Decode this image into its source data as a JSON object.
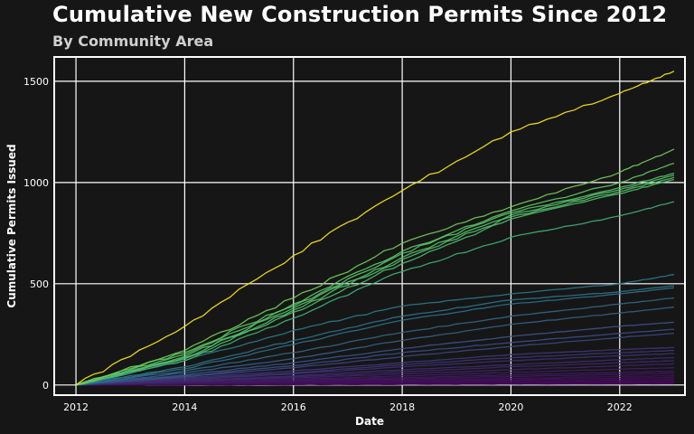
{
  "chart_data": {
    "type": "line",
    "title": "Cumulative New Construction Permits Since 2012",
    "subtitle": "By Community Area",
    "xlabel": "Date",
    "ylabel": "Cumulative Permits Issued",
    "xlim": [
      2011.6,
      2023.2
    ],
    "ylim": [
      -50,
      1620
    ],
    "x_ticks": [
      "2012",
      "2014",
      "2016",
      "2018",
      "2020",
      "2022"
    ],
    "y_ticks": [
      "0",
      "500",
      "1000",
      "1500"
    ],
    "grid": true,
    "colormap": "viridis",
    "colors": {
      "background": "#161616",
      "grid": "#ffffff",
      "low": "#440154",
      "high": "#fde725"
    },
    "x": [
      2012,
      2014,
      2016,
      2018,
      2020,
      2022,
      2023
    ],
    "series": [
      {
        "values": [
          0,
          290,
          640,
          960,
          1250,
          1440,
          1550
        ]
      },
      {
        "values": [
          0,
          170,
          430,
          700,
          880,
          1050,
          1165
        ]
      },
      {
        "values": [
          0,
          160,
          400,
          660,
          860,
          1000,
          1095
        ]
      },
      {
        "values": [
          0,
          150,
          390,
          650,
          850,
          975,
          1045
        ]
      },
      {
        "values": [
          0,
          140,
          380,
          630,
          840,
          965,
          1035
        ]
      },
      {
        "values": [
          0,
          135,
          370,
          620,
          830,
          955,
          1025
        ]
      },
      {
        "values": [
          0,
          130,
          360,
          600,
          820,
          945,
          1015
        ]
      },
      {
        "values": [
          0,
          120,
          330,
          560,
          730,
          835,
          905
        ]
      },
      {
        "values": [
          0,
          120,
          270,
          390,
          450,
          500,
          545
        ]
      },
      {
        "values": [
          0,
          90,
          220,
          340,
          420,
          460,
          490
        ]
      },
      {
        "values": [
          0,
          80,
          200,
          320,
          400,
          450,
          480
        ]
      },
      {
        "values": [
          0,
          70,
          160,
          260,
          340,
          400,
          430
        ]
      },
      {
        "values": [
          0,
          60,
          130,
          220,
          300,
          355,
          385
        ]
      },
      {
        "values": [
          0,
          50,
          110,
          180,
          240,
          290,
          310
        ]
      },
      {
        "values": [
          0,
          45,
          95,
          160,
          210,
          255,
          275
        ]
      },
      {
        "values": [
          0,
          40,
          85,
          140,
          190,
          235,
          255
        ]
      },
      {
        "values": [
          0,
          35,
          70,
          110,
          150,
          175,
          185
        ]
      },
      {
        "values": [
          0,
          30,
          60,
          100,
          135,
          160,
          170
        ]
      },
      {
        "values": [
          0,
          25,
          55,
          90,
          120,
          145,
          155
        ]
      },
      {
        "values": [
          0,
          20,
          45,
          75,
          100,
          125,
          135
        ]
      },
      {
        "values": [
          0,
          18,
          40,
          65,
          90,
          110,
          120
        ]
      },
      {
        "values": [
          0,
          15,
          35,
          55,
          75,
          95,
          105
        ]
      },
      {
        "values": [
          0,
          12,
          28,
          45,
          62,
          78,
          85
        ]
      },
      {
        "values": [
          0,
          10,
          22,
          36,
          50,
          62,
          68
        ]
      },
      {
        "values": [
          0,
          8,
          18,
          30,
          42,
          52,
          58
        ]
      },
      {
        "values": [
          0,
          6,
          14,
          24,
          33,
          42,
          46
        ]
      },
      {
        "values": [
          0,
          5,
          11,
          19,
          26,
          33,
          37
        ]
      },
      {
        "values": [
          0,
          4,
          8,
          14,
          20,
          25,
          28
        ]
      },
      {
        "values": [
          0,
          3,
          6,
          10,
          14,
          18,
          20
        ]
      },
      {
        "values": [
          0,
          2,
          4,
          7,
          10,
          13,
          15
        ]
      },
      {
        "values": [
          0,
          1,
          3,
          5,
          7,
          9,
          10
        ]
      },
      {
        "values": [
          0,
          1,
          2,
          3,
          4,
          5,
          6
        ]
      }
    ]
  }
}
